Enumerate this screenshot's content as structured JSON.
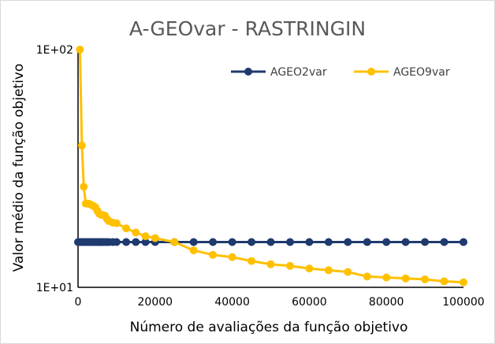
{
  "chart_data": {
    "type": "line",
    "title": "A-GEOvar - RASTRINGIN",
    "xlabel": "Número de avaliações da função objetivo",
    "ylabel": "Valor médio da função objetivo",
    "xlim": [
      0,
      100000
    ],
    "ylim": [
      10,
      100
    ],
    "yscale": "log",
    "x_ticks": [
      0,
      20000,
      40000,
      60000,
      80000,
      100000
    ],
    "x_tick_labels": [
      "0",
      "20000",
      "40000",
      "60000",
      "80000",
      "100000"
    ],
    "y_ticks": [
      10,
      100
    ],
    "y_tick_labels": [
      "1E+01",
      "1E+02"
    ],
    "grid": false,
    "legend_position": "top-right",
    "series": [
      {
        "name": "AGEO2var",
        "color": "#1f3a6e",
        "x": [
          0,
          500,
          1000,
          1500,
          2000,
          2500,
          3000,
          3500,
          4000,
          4500,
          5000,
          5500,
          6000,
          6500,
          7000,
          7500,
          8000,
          9000,
          10000,
          12500,
          15000,
          17500,
          20000,
          25000,
          30000,
          35000,
          40000,
          45000,
          50000,
          55000,
          60000,
          65000,
          70000,
          75000,
          80000,
          85000,
          90000,
          95000,
          100000
        ],
        "y": [
          15.5,
          15.5,
          15.5,
          15.5,
          15.5,
          15.5,
          15.5,
          15.5,
          15.5,
          15.5,
          15.5,
          15.5,
          15.5,
          15.5,
          15.5,
          15.5,
          15.5,
          15.5,
          15.5,
          15.5,
          15.5,
          15.5,
          15.5,
          15.5,
          15.5,
          15.5,
          15.5,
          15.5,
          15.5,
          15.5,
          15.5,
          15.5,
          15.5,
          15.5,
          15.5,
          15.5,
          15.5,
          15.5,
          15.5
        ]
      },
      {
        "name": "AGEO9var",
        "color": "#ffc000",
        "x": [
          500,
          1000,
          1500,
          2000,
          2500,
          3000,
          3500,
          4000,
          4500,
          5000,
          5500,
          6000,
          6500,
          7000,
          7500,
          8000,
          9000,
          10000,
          12500,
          15000,
          17500,
          20000,
          25000,
          30000,
          35000,
          40000,
          45000,
          50000,
          55000,
          60000,
          65000,
          70000,
          75000,
          80000,
          85000,
          90000,
          95000,
          100000
        ],
        "y": [
          100,
          39.5,
          26.5,
          22.5,
          22.5,
          22.4,
          22.2,
          22.0,
          21.7,
          21.0,
          20.4,
          20.2,
          20.1,
          20.0,
          19.4,
          19.0,
          18.7,
          18.6,
          17.7,
          17.0,
          16.4,
          16.1,
          15.5,
          14.3,
          13.7,
          13.4,
          12.9,
          12.5,
          12.3,
          12.0,
          11.8,
          11.6,
          11.1,
          11.0,
          10.9,
          10.8,
          10.6,
          10.5
        ]
      }
    ]
  }
}
